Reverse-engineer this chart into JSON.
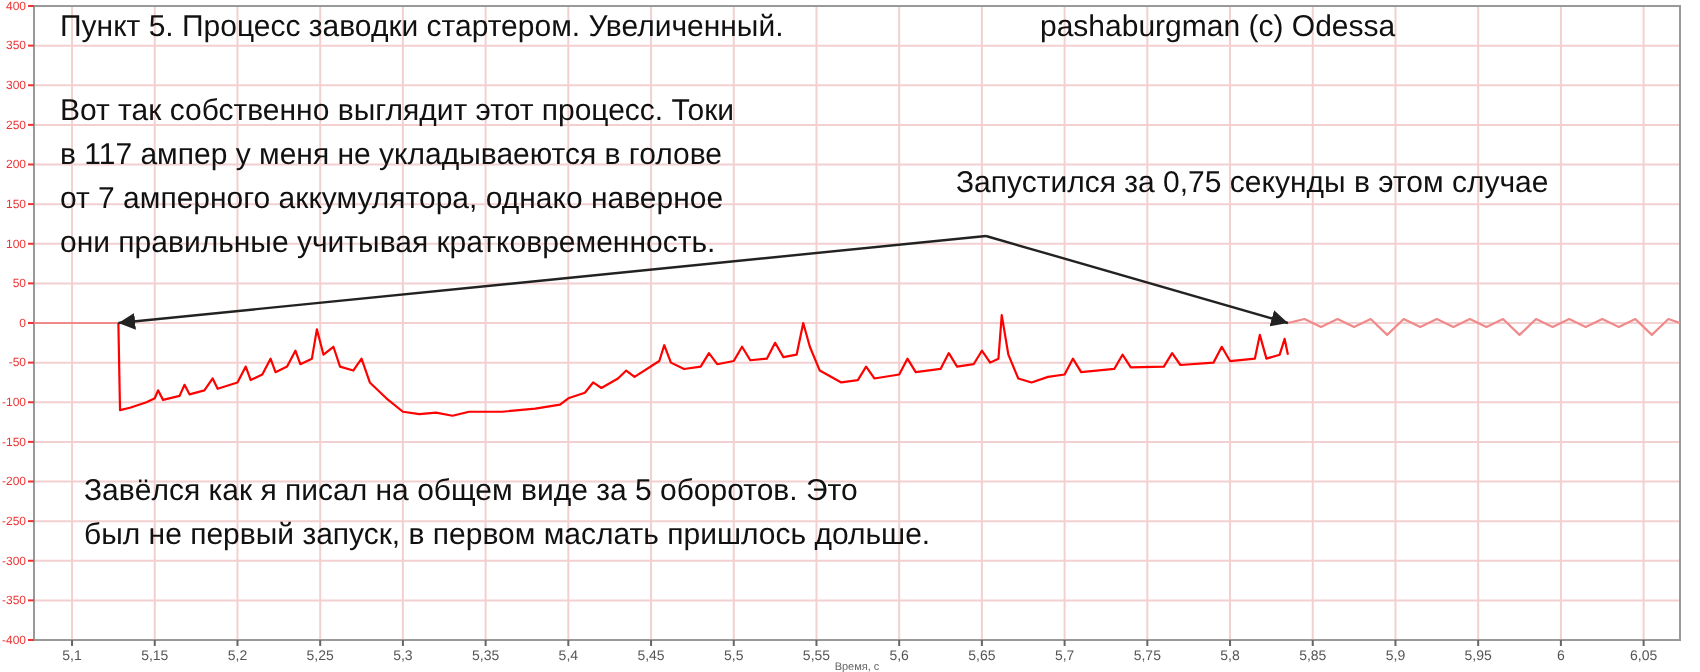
{
  "chart_data": {
    "type": "line",
    "xlabel": "Время, с",
    "annotations": [
      "Пункт 5. Процесс заводки стартером. Увеличенный.",
      "pashaburgman (c) Odessa",
      "Вот так собственно выглядит этот процесс. Токи\nв 117 ампер у меня не укладываеются в голове\nот 7 амперного аккумулятора, однако наверное\nони правильные учитывая кратковременность.",
      {
        "text": "Запустился за 0,75 секунды в этом случае",
        "x": 5.835,
        "y": 0
      },
      "Завёлся как я писал на общем виде за 5 оборотов. Это\nбыл не первый запуск, в первом маслать пришлось дольше."
    ],
    "xlim": [
      5.077,
      6.072
    ],
    "xticks": [
      {
        "value": 5.1,
        "label": "5,1"
      },
      {
        "value": 5.15,
        "label": "5,15"
      },
      {
        "value": 5.2,
        "label": "5,2"
      },
      {
        "value": 5.25,
        "label": "5,25"
      },
      {
        "value": 5.3,
        "label": "5,3"
      },
      {
        "value": 5.35,
        "label": "5,35"
      },
      {
        "value": 5.4,
        "label": "5,4"
      },
      {
        "value": 5.45,
        "label": "5,45"
      },
      {
        "value": 5.5,
        "label": "5,5"
      },
      {
        "value": 5.55,
        "label": "5,55"
      },
      {
        "value": 5.6,
        "label": "5,6"
      },
      {
        "value": 5.65,
        "label": "5,65"
      },
      {
        "value": 5.7,
        "label": "5,7"
      },
      {
        "value": 5.75,
        "label": "5,75"
      },
      {
        "value": 5.8,
        "label": "5,8"
      },
      {
        "value": 5.85,
        "label": "5,85"
      },
      {
        "value": 5.9,
        "label": "5,9"
      },
      {
        "value": 5.95,
        "label": "5,95"
      },
      {
        "value": 6,
        "label": "6"
      },
      {
        "value": 6.05,
        "label": "6,05"
      }
    ],
    "ylim": [
      -400,
      400
    ],
    "yticks": [
      -400,
      -350,
      -300,
      -250,
      -200,
      -150,
      -100,
      -50,
      0,
      50,
      100,
      150,
      200,
      250,
      300,
      350,
      400
    ],
    "grid": true,
    "series": [
      {
        "color": "#f08a8a",
        "x": [
          5.077,
          5.128
        ],
        "values": [
          0,
          0
        ]
      },
      {
        "color": "#ff0000",
        "x": [
          5.128,
          5.129,
          5.135,
          5.145,
          5.15,
          5.152,
          5.155,
          5.165,
          5.168,
          5.171,
          5.18,
          5.185,
          5.188,
          5.2,
          5.205,
          5.208,
          5.215,
          5.22,
          5.223,
          5.23,
          5.235,
          5.238,
          5.245,
          5.248,
          5.252,
          5.258,
          5.262,
          5.27,
          5.275,
          5.28,
          5.29,
          5.3,
          5.31,
          5.32,
          5.33,
          5.34,
          5.36,
          5.38,
          5.395,
          5.4,
          5.41,
          5.415,
          5.42,
          5.43,
          5.435,
          5.44,
          5.455,
          5.458,
          5.462,
          5.47,
          5.48,
          5.485,
          5.49,
          5.5,
          5.505,
          5.51,
          5.52,
          5.525,
          5.53,
          5.538,
          5.542,
          5.546,
          5.552,
          5.565,
          5.575,
          5.58,
          5.585,
          5.6,
          5.605,
          5.61,
          5.625,
          5.63,
          5.635,
          5.645,
          5.65,
          5.655,
          5.66,
          5.662,
          5.666,
          5.672,
          5.68,
          5.69,
          5.7,
          5.705,
          5.71,
          5.73,
          5.735,
          5.74,
          5.76,
          5.765,
          5.77,
          5.79,
          5.795,
          5.8,
          5.815,
          5.818,
          5.822,
          5.83,
          5.833,
          5.835
        ],
        "values": [
          0,
          -110,
          -107,
          -100,
          -95,
          -85,
          -97,
          -92,
          -78,
          -90,
          -85,
          -70,
          -83,
          -75,
          -55,
          -72,
          -65,
          -45,
          -62,
          -55,
          -35,
          -52,
          -45,
          -8,
          -40,
          -30,
          -55,
          -60,
          -45,
          -75,
          -95,
          -112,
          -115,
          -113,
          -117,
          -112,
          -112,
          -108,
          -103,
          -95,
          -88,
          -75,
          -82,
          -70,
          -60,
          -68,
          -48,
          -28,
          -50,
          -58,
          -55,
          -38,
          -52,
          -48,
          -30,
          -47,
          -45,
          -25,
          -43,
          -40,
          0,
          -30,
          -60,
          -75,
          -72,
          -55,
          -70,
          -65,
          -45,
          -62,
          -58,
          -38,
          -55,
          -52,
          -35,
          -50,
          -45,
          10,
          -40,
          -70,
          -75,
          -68,
          -65,
          -45,
          -62,
          -58,
          -40,
          -56,
          -55,
          -38,
          -53,
          -50,
          -30,
          -48,
          -45,
          -15,
          -45,
          -40,
          -20,
          -40
        ]
      },
      {
        "color": "#f08a8a",
        "x": [
          5.835,
          5.845,
          5.855,
          5.865,
          5.875,
          5.885,
          5.895,
          5.905,
          5.915,
          5.925,
          5.935,
          5.945,
          5.955,
          5.965,
          5.975,
          5.985,
          5.995,
          6.005,
          6.015,
          6.025,
          6.035,
          6.045,
          6.055,
          6.065,
          6.072
        ],
        "values": [
          0,
          5,
          -5,
          5,
          -5,
          5,
          -15,
          5,
          -5,
          5,
          -5,
          5,
          -5,
          5,
          -15,
          5,
          -5,
          5,
          -5,
          5,
          -5,
          5,
          -15,
          5,
          0
        ]
      }
    ]
  }
}
